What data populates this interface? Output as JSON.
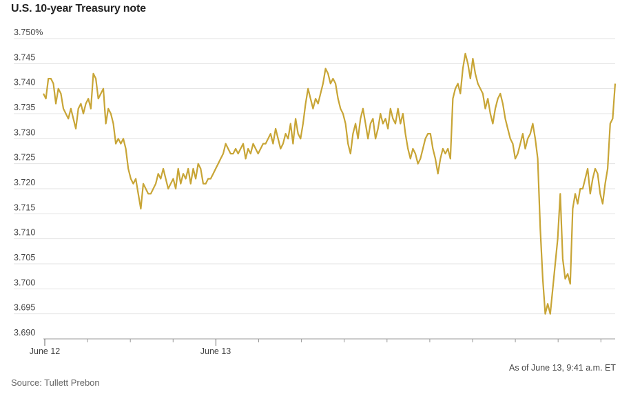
{
  "title": "U.S. 10-year Treasury note",
  "note": "As of June 13, 9:41 a.m. ET",
  "source": "Source: Tullett Prebon",
  "colors": {
    "line": "#c8a536",
    "grid": "#e3e3e3",
    "axis": "#999999",
    "text": "#444444"
  },
  "chart_data": {
    "type": "line",
    "title": "U.S. 10-year Treasury note",
    "ylim": [
      3.69,
      3.75
    ],
    "y_ticks": [
      3.69,
      3.695,
      3.7,
      3.705,
      3.71,
      3.715,
      3.72,
      3.725,
      3.73,
      3.735,
      3.74,
      3.745,
      3.75
    ],
    "y_tick_labels": [
      "3.690",
      "3.695",
      "3.700",
      "3.705",
      "3.710",
      "3.715",
      "3.720",
      "3.725",
      "3.730",
      "3.735",
      "3.740",
      "3.745",
      "3.750%"
    ],
    "x_tick_labels": [
      "June 12",
      "June 13"
    ],
    "x_minor_tick_count": 15,
    "grid": true,
    "series": [
      {
        "values": [
          3.739,
          3.738,
          3.742,
          3.742,
          3.741,
          3.737,
          3.74,
          3.739,
          3.736,
          3.735,
          3.734,
          3.736,
          3.734,
          3.732,
          3.736,
          3.737,
          3.735,
          3.737,
          3.738,
          3.736,
          3.743,
          3.742,
          3.738,
          3.739,
          3.74,
          3.733,
          3.736,
          3.735,
          3.733,
          3.729,
          3.73,
          3.729,
          3.73,
          3.728,
          3.724,
          3.722,
          3.721,
          3.722,
          3.719,
          3.716,
          3.721,
          3.72,
          3.719,
          3.719,
          3.72,
          3.721,
          3.723,
          3.722,
          3.724,
          3.722,
          3.72,
          3.721,
          3.722,
          3.72,
          3.724,
          3.721,
          3.723,
          3.722,
          3.724,
          3.721,
          3.724,
          3.722,
          3.725,
          3.724,
          3.721,
          3.721,
          3.722,
          3.722,
          3.723,
          3.724,
          3.725,
          3.726,
          3.727,
          3.729,
          3.728,
          3.727,
          3.727,
          3.728,
          3.727,
          3.728,
          3.729,
          3.726,
          3.728,
          3.727,
          3.729,
          3.728,
          3.727,
          3.728,
          3.729,
          3.729,
          3.73,
          3.731,
          3.729,
          3.732,
          3.73,
          3.728,
          3.729,
          3.731,
          3.73,
          3.733,
          3.729,
          3.734,
          3.731,
          3.73,
          3.733,
          3.737,
          3.74,
          3.738,
          3.736,
          3.738,
          3.737,
          3.739,
          3.741,
          3.744,
          3.743,
          3.741,
          3.742,
          3.741,
          3.738,
          3.736,
          3.735,
          3.733,
          3.729,
          3.727,
          3.731,
          3.733,
          3.73,
          3.734,
          3.736,
          3.733,
          3.73,
          3.733,
          3.734,
          3.73,
          3.732,
          3.735,
          3.733,
          3.734,
          3.732,
          3.736,
          3.734,
          3.733,
          3.736,
          3.733,
          3.735,
          3.731,
          3.728,
          3.726,
          3.728,
          3.727,
          3.725,
          3.726,
          3.728,
          3.73,
          3.731,
          3.731,
          3.728,
          3.726,
          3.723,
          3.726,
          3.728,
          3.727,
          3.728,
          3.726,
          3.738,
          3.74,
          3.741,
          3.739,
          3.744,
          3.747,
          3.745,
          3.742,
          3.746,
          3.743,
          3.741,
          3.74,
          3.739,
          3.736,
          3.738,
          3.735,
          3.733,
          3.736,
          3.738,
          3.739,
          3.737,
          3.734,
          3.732,
          3.73,
          3.729,
          3.726,
          3.727,
          3.729,
          3.731,
          3.728,
          3.73,
          3.731,
          3.733,
          3.73,
          3.726,
          3.712,
          3.702,
          3.695,
          3.697,
          3.695,
          3.7,
          3.705,
          3.71,
          3.719,
          3.706,
          3.702,
          3.703,
          3.701,
          3.716,
          3.719,
          3.717,
          3.72,
          3.72,
          3.722,
          3.724,
          3.719,
          3.722,
          3.724,
          3.723,
          3.719,
          3.717,
          3.721,
          3.724,
          3.733,
          3.734,
          3.741
        ]
      }
    ]
  }
}
